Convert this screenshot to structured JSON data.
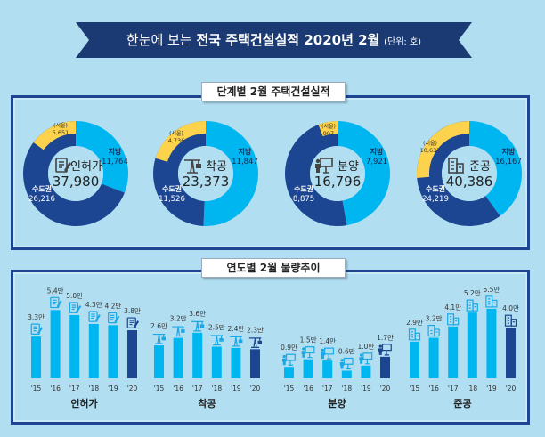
{
  "header": {
    "title_prefix": "한눈에 보는",
    "title_bold": "전국 주택건설실적 2020년 2월",
    "unit": "(단위: 호)",
    "banner_color": "#1b3a73"
  },
  "colors": {
    "local": "#00b6f1",
    "capital": "#1c4592",
    "seoul": "#fdd34e",
    "background": "#b1def1",
    "current_year_bar": "#1c4592"
  },
  "section1": {
    "label": "단계별 2월 주택건설실적"
  },
  "section2": {
    "label": "연도별 2월 물량추이"
  },
  "chart_data": [
    {
      "type": "pie",
      "title": "단계별 2월 주택건설실적",
      "donuts": [
        {
          "name": "인허가",
          "icon": "permit-document-icon",
          "total": "37,980",
          "local_label": "지방",
          "local": 11764,
          "local_text": "11,764",
          "capital_label": "수도권",
          "capital": 26216,
          "capital_text": "26,216",
          "seoul_label": "(서울)",
          "seoul": 5651,
          "seoul_text": "5,651"
        },
        {
          "name": "착공",
          "icon": "crane-icon",
          "total": "23,373",
          "local_label": "지방",
          "local": 11847,
          "local_text": "11,847",
          "capital_label": "수도권",
          "capital": 11526,
          "capital_text": "11,526",
          "seoul_label": "(서울)",
          "seoul": 4736,
          "seoul_text": "4,736"
        },
        {
          "name": "분양",
          "icon": "presentation-icon",
          "total": "16,796",
          "local_label": "지방",
          "local": 7921,
          "local_text": "7,921",
          "capital_label": "수도권",
          "capital": 8875,
          "capital_text": "8,875",
          "seoul_label": "(서울)",
          "seoul": 997,
          "seoul_text": "997"
        },
        {
          "name": "준공",
          "icon": "building-icon",
          "total": "40,386",
          "local_label": "지방",
          "local": 16167,
          "local_text": "16,167",
          "capital_label": "수도권",
          "capital": 24219,
          "capital_text": "24,219",
          "seoul_label": "(서울)",
          "seoul": 10637,
          "seoul_text": "10,637"
        }
      ]
    },
    {
      "type": "bar",
      "title": "연도별 2월 물량추이",
      "categories": [
        "'15",
        "'16",
        "'17",
        "'18",
        "'19",
        "'20"
      ],
      "unit": "만",
      "groups": [
        {
          "name": "인허가",
          "icon": "permit-document-icon",
          "values": [
            3.3,
            5.4,
            5.0,
            4.3,
            4.2,
            3.8
          ],
          "labels": [
            "3.3만",
            "5.4만",
            "5.0만",
            "4.3만",
            "4.2만",
            "3.8만"
          ]
        },
        {
          "name": "착공",
          "icon": "crane-icon",
          "values": [
            2.6,
            3.2,
            3.6,
            2.5,
            2.4,
            2.3
          ],
          "labels": [
            "2.6만",
            "3.2만",
            "3.6만",
            "2.5만",
            "2.4만",
            "2.3만"
          ]
        },
        {
          "name": "분양",
          "icon": "presentation-icon",
          "values": [
            0.9,
            1.5,
            1.4,
            0.6,
            1.0,
            1.7
          ],
          "labels": [
            "0.9만",
            "1.5만",
            "1.4만",
            "0.6만",
            "1.0만",
            "1.7만"
          ]
        },
        {
          "name": "준공",
          "icon": "building-icon",
          "values": [
            2.9,
            3.2,
            4.1,
            5.2,
            5.5,
            4.0
          ],
          "labels": [
            "2.9만",
            "3.2만",
            "4.1만",
            "5.2만",
            "5.5만",
            "4.0만"
          ]
        }
      ]
    }
  ]
}
